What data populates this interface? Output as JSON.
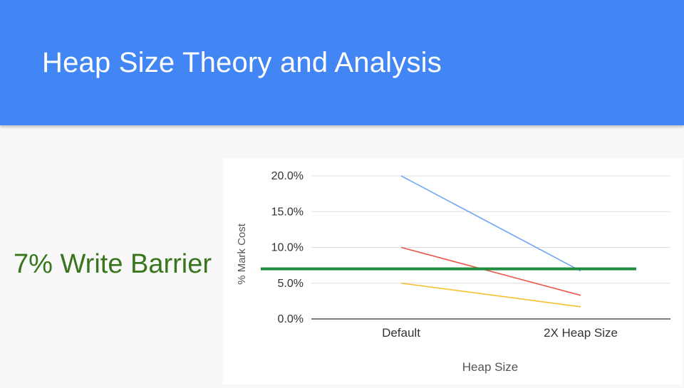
{
  "slide": {
    "title": "Heap Size Theory and Analysis",
    "callout": "7% Write Barrier"
  },
  "colors": {
    "header": "#4285f4",
    "callout": "#38761d",
    "series": [
      "#6fa8f5",
      "#e8574a",
      "#f4c02d"
    ],
    "threshold": "#1e8e3e"
  },
  "chart_data": {
    "type": "line",
    "categories": [
      "Default",
      "2X Heap Size"
    ],
    "xlabel": "Heap Size",
    "ylabel": "% Mark Cost",
    "ylim": [
      0,
      20
    ],
    "yticks": [
      "0.0%",
      "5.0%",
      "10.0%",
      "15.0%",
      "20.0%"
    ],
    "grid": true,
    "series": [
      {
        "values": [
          20.0,
          6.7
        ]
      },
      {
        "values": [
          10.0,
          3.3
        ]
      },
      {
        "values": [
          5.0,
          1.7
        ]
      }
    ],
    "reference_line": {
      "value": 7.0
    }
  }
}
